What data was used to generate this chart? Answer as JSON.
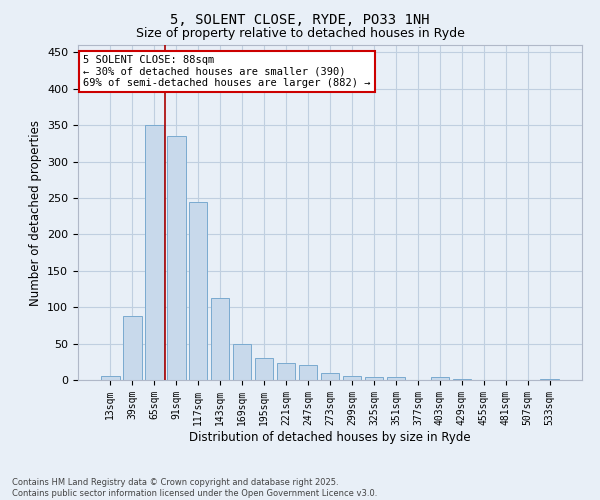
{
  "title": "5, SOLENT CLOSE, RYDE, PO33 1NH",
  "subtitle": "Size of property relative to detached houses in Ryde",
  "xlabel": "Distribution of detached houses by size in Ryde",
  "ylabel": "Number of detached properties",
  "categories": [
    "13sqm",
    "39sqm",
    "65sqm",
    "91sqm",
    "117sqm",
    "143sqm",
    "169sqm",
    "195sqm",
    "221sqm",
    "247sqm",
    "273sqm",
    "299sqm",
    "325sqm",
    "351sqm",
    "377sqm",
    "403sqm",
    "429sqm",
    "455sqm",
    "481sqm",
    "507sqm",
    "533sqm"
  ],
  "values": [
    5,
    88,
    350,
    335,
    245,
    112,
    50,
    30,
    24,
    20,
    9,
    5,
    4,
    4,
    0,
    4,
    1,
    0,
    0,
    0,
    1
  ],
  "bar_color": "#c8d9eb",
  "bar_edge_color": "#7aaad0",
  "grid_color": "#c0cfe0",
  "bg_color": "#e8eff7",
  "annotation_text": "5 SOLENT CLOSE: 88sqm\n← 30% of detached houses are smaller (390)\n69% of semi-detached houses are larger (882) →",
  "annotation_box_color": "#ffffff",
  "annotation_box_edge": "#cc0000",
  "vline_color": "#aa0000",
  "vline_bin_index": 2,
  "footer": "Contains HM Land Registry data © Crown copyright and database right 2025.\nContains public sector information licensed under the Open Government Licence v3.0.",
  "ylim": [
    0,
    460
  ],
  "yticks": [
    0,
    50,
    100,
    150,
    200,
    250,
    300,
    350,
    400,
    450
  ]
}
